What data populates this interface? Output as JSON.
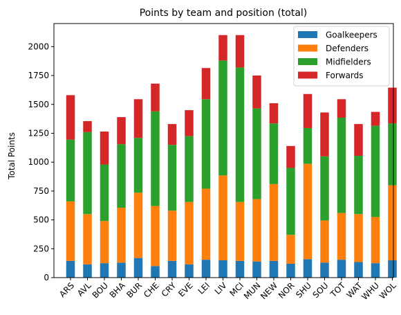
{
  "chart_data": {
    "type": "bar",
    "stacked": true,
    "title": "Points by team and position (total)",
    "xlabel": "",
    "ylabel": "Total Points",
    "ylim": [
      0,
      2200
    ],
    "yticks": [
      0,
      250,
      500,
      750,
      1000,
      1250,
      1500,
      1750,
      2000
    ],
    "grid": false,
    "legend_position": "top-right",
    "categories": [
      "ARS",
      "AVL",
      "BOU",
      "BHA",
      "BUR",
      "CHE",
      "CRY",
      "EVE",
      "LEI",
      "LIV",
      "MCI",
      "MUN",
      "NEW",
      "NOR",
      "SHU",
      "SOU",
      "TOT",
      "WAT",
      "WHU",
      "WOL"
    ],
    "series": [
      {
        "name": "Goalkeepers",
        "color": "#1f77b4",
        "values": [
          145,
          115,
          125,
          130,
          170,
          100,
          145,
          115,
          155,
          150,
          145,
          140,
          145,
          120,
          160,
          130,
          155,
          135,
          125,
          150
        ]
      },
      {
        "name": "Defenders",
        "color": "#ff7f0e",
        "values": [
          515,
          435,
          365,
          475,
          565,
          520,
          435,
          540,
          615,
          735,
          510,
          540,
          665,
          250,
          825,
          365,
          405,
          415,
          400,
          650
        ]
      },
      {
        "name": "Midfielders",
        "color": "#2ca02c",
        "values": [
          535,
          710,
          490,
          550,
          475,
          820,
          570,
          570,
          775,
          995,
          1165,
          785,
          525,
          580,
          310,
          555,
          825,
          505,
          790,
          535
        ]
      },
      {
        "name": "Forwards",
        "color": "#d62728",
        "values": [
          385,
          95,
          285,
          235,
          335,
          240,
          180,
          225,
          270,
          220,
          280,
          285,
          175,
          190,
          295,
          380,
          160,
          275,
          120,
          310
        ]
      }
    ]
  }
}
